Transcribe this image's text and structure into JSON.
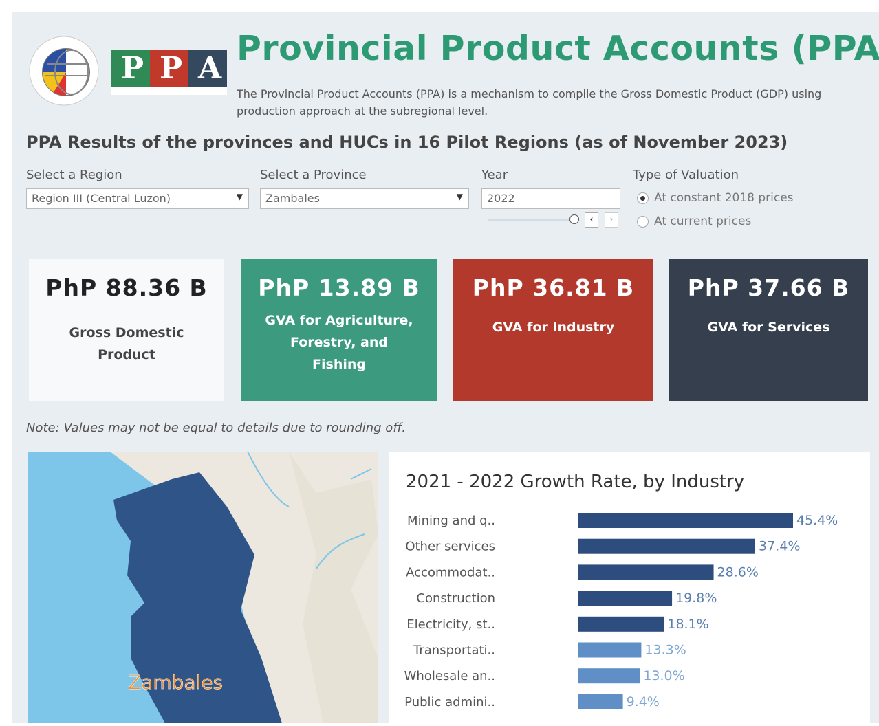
{
  "header": {
    "logo_letters": [
      "P",
      "P",
      "A"
    ],
    "title": "Provincial Product Accounts (PPA)",
    "description": "The Provincial Product Accounts (PPA) is a mechanism to compile the Gross Domestic Product (GDP) using production approach at the subregional level."
  },
  "section_title": "PPA Results of the provinces and HUCs in 16 Pilot Regions (as of November 2023)",
  "filters": {
    "region": {
      "label": "Select a Region",
      "value": "Region III (Central Luzon)"
    },
    "province": {
      "label": "Select a Province",
      "value": "Zambales"
    },
    "year": {
      "label": "Year",
      "value": "2022"
    },
    "valuation": {
      "label": "Type of Valuation",
      "options": [
        "At constant 2018 prices",
        "At current prices"
      ]
    }
  },
  "kpis": [
    {
      "value": "PhP 88.36 B",
      "label": "Gross Domestic Product"
    },
    {
      "value": "PhP 13.89 B",
      "label": "GVA for Agriculture, Forestry, and Fishing"
    },
    {
      "value": "PhP 36.81 B",
      "label": "GVA for Industry"
    },
    {
      "value": "PhP 37.66 B",
      "label": "GVA for Services"
    }
  ],
  "note": "Note: Values may not be equal to details due to rounding off.",
  "map": {
    "label": "Zambales"
  },
  "chart_data": {
    "type": "bar",
    "orientation": "horizontal",
    "title": "2021 - 2022 Growth Rate, by Industry",
    "categories": [
      "Mining and q..",
      "Other services",
      "Accommodat..",
      "Construction",
      "Electricity, st..",
      "Transportati..",
      "Wholesale an..",
      "Public admini.."
    ],
    "values": [
      45.4,
      37.4,
      28.6,
      19.8,
      18.1,
      13.3,
      13.0,
      9.4
    ],
    "value_labels": [
      "45.4%",
      "37.4%",
      "28.6%",
      "19.8%",
      "18.1%",
      "13.3%",
      "13.0%",
      "9.4%"
    ],
    "colors": [
      "#2c4d7e",
      "#2c4d7e",
      "#2c4d7e",
      "#2c4d7e",
      "#2c4d7e",
      "#5f8fc6",
      "#5f8fc6",
      "#5f8fc6"
    ],
    "label_colors": [
      "#5a7fae",
      "#5a7fae",
      "#5a7fae",
      "#5a7fae",
      "#5a7fae",
      "#7fa6d3",
      "#7fa6d3",
      "#7fa6d3"
    ]
  }
}
